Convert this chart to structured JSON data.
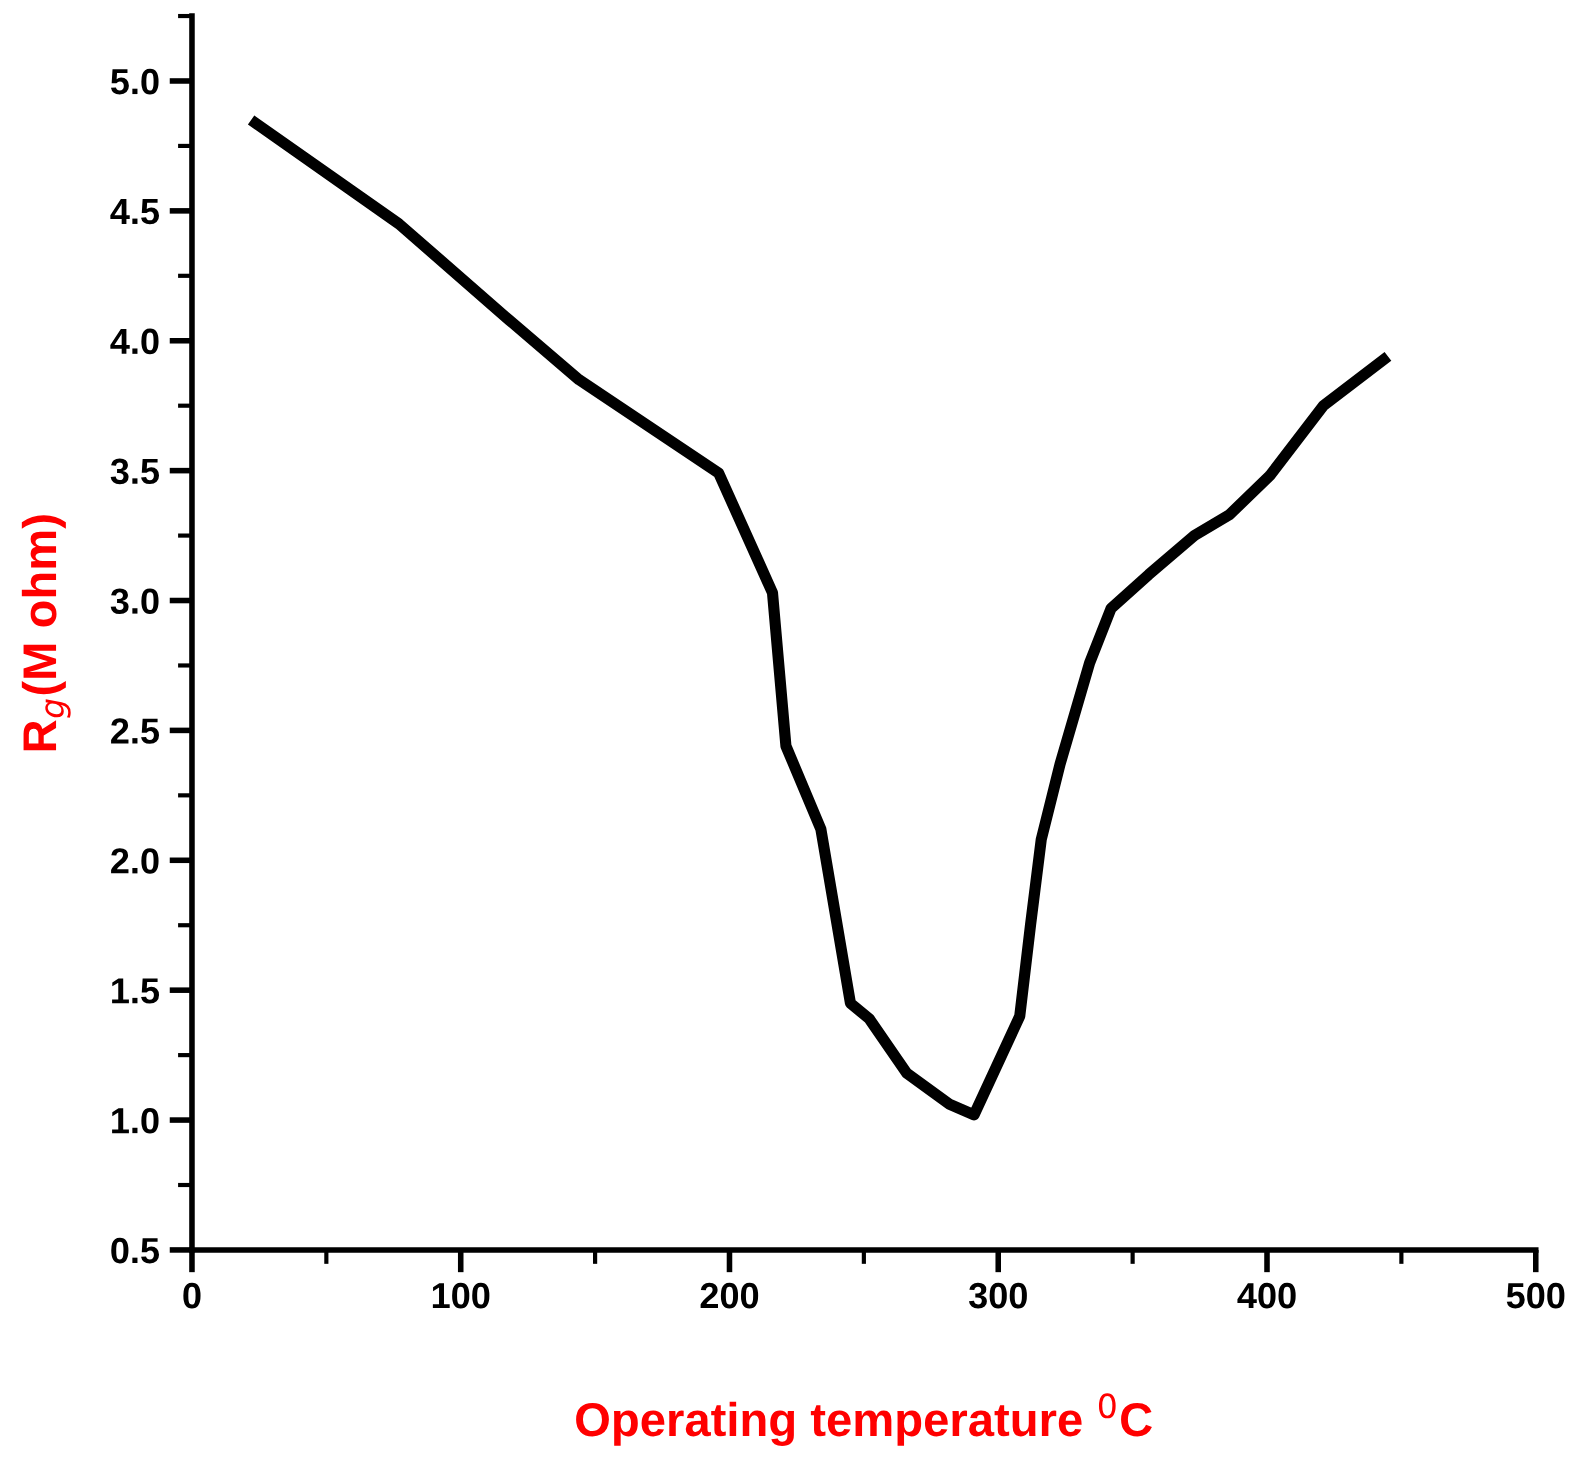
{
  "chart_data": {
    "type": "line",
    "xlabel": "Operating temperature $^{0}$C",
    "ylabel": "R$_{g}$(M ohm)",
    "x": [
      22,
      77,
      118,
      144,
      196,
      216,
      221,
      234,
      245,
      252,
      266,
      282,
      291,
      308,
      312,
      316,
      323,
      334,
      342,
      356,
      373,
      386,
      401,
      421,
      445
    ],
    "series": [
      {
        "color": "#000000",
        "values": [
          4.85,
          4.45,
          4.08,
          3.85,
          3.49,
          3.03,
          2.44,
          2.12,
          1.45,
          1.39,
          1.18,
          1.06,
          1.02,
          1.4,
          1.75,
          2.08,
          2.37,
          2.76,
          2.97,
          3.1,
          3.25,
          3.33,
          3.48,
          3.75,
          3.94
        ]
      }
    ],
    "xlim": [
      0,
      500
    ],
    "xticks": [
      0,
      100,
      200,
      300,
      400,
      500
    ],
    "ylim": [
      0.5,
      5.25
    ],
    "yticks": [
      0.5,
      {
        "value": 1,
        "label": "1.0"
      },
      1.5,
      {
        "value": 2,
        "label": "2.0"
      },
      2.5,
      {
        "value": 3,
        "label": "3.0"
      },
      3.5,
      {
        "value": 4,
        "label": "4.0"
      },
      4.5,
      {
        "value": 5,
        "label": "5.0"
      }
    ],
    "grid": false,
    "legend": false,
    "marker": "none",
    "line_style": "solid"
  }
}
